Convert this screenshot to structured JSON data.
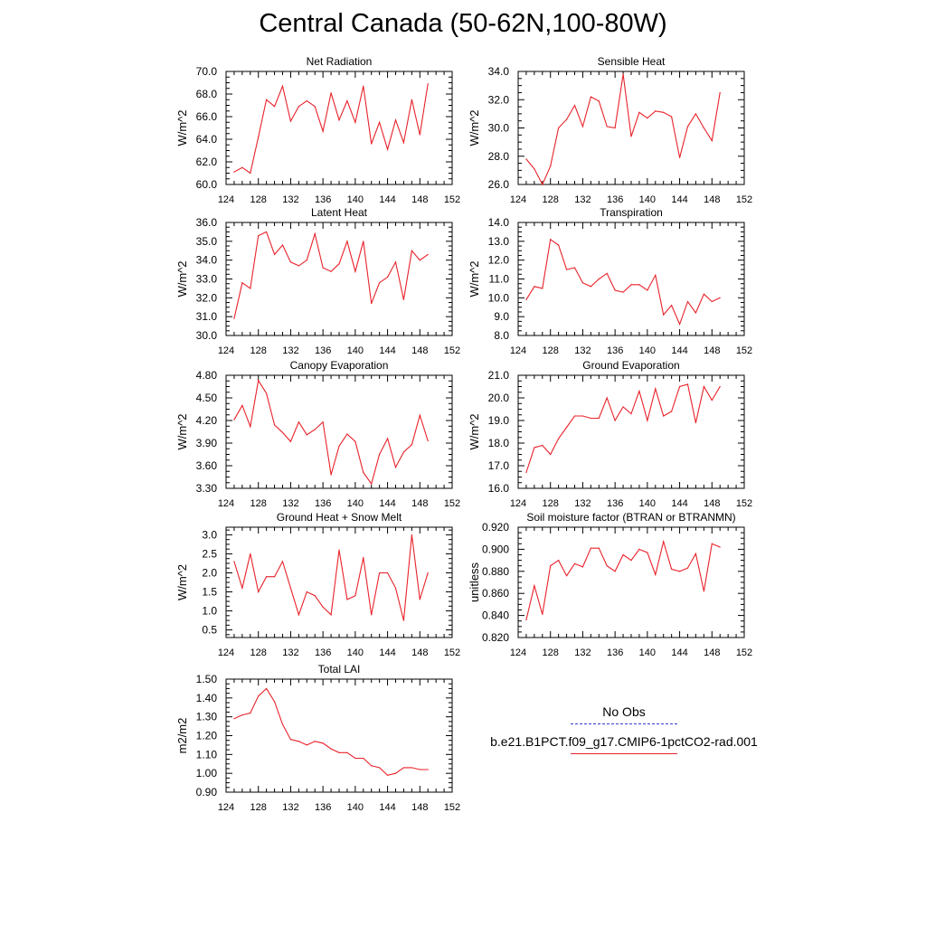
{
  "title": "Central Canada (50-62N,100-80W)",
  "legend": {
    "obs_label": "No Obs",
    "obs_color": "#3a3ad0",
    "model_label": "b.e21.B1PCT.f09_g17.CMIP6-1pctCO2-rad.001",
    "model_color": "#e8222a"
  },
  "chart_data": [
    {
      "type": "line",
      "title": "Net Radiation",
      "ylabel": "W/m^2",
      "xlim": [
        124,
        152
      ],
      "xticks": [
        "124",
        "128",
        "132",
        "136",
        "140",
        "144",
        "148",
        "152"
      ],
      "ylim": [
        60.0,
        70.0
      ],
      "yticks": [
        "60.0",
        "62.0",
        "64.0",
        "66.0",
        "68.0",
        "70.0"
      ],
      "x": [
        125,
        126,
        127,
        128,
        129,
        130,
        131,
        132,
        133,
        134,
        135,
        136,
        137,
        138,
        139,
        140,
        141,
        142,
        143,
        144,
        145,
        146,
        147,
        148,
        149
      ],
      "series": [
        {
          "name": "b.e21.B1PCT.f09_g17.CMIP6-1pctCO2-rad.001",
          "values": [
            61.1,
            61.5,
            61.0,
            64.2,
            67.5,
            66.9,
            68.7,
            65.6,
            66.9,
            67.4,
            66.9,
            64.7,
            68.1,
            65.7,
            67.4,
            65.5,
            68.7,
            63.6,
            65.5,
            63.1,
            65.7,
            63.7,
            67.5,
            64.4,
            68.9
          ]
        }
      ]
    },
    {
      "type": "line",
      "title": "Sensible Heat",
      "ylabel": "W/m^2",
      "xlim": [
        124,
        152
      ],
      "xticks": [
        "124",
        "128",
        "132",
        "136",
        "140",
        "144",
        "148",
        "152"
      ],
      "ylim": [
        26.0,
        34.0
      ],
      "yticks": [
        "26.0",
        "28.0",
        "30.0",
        "32.0",
        "34.0"
      ],
      "x": [
        125,
        126,
        127,
        128,
        129,
        130,
        131,
        132,
        133,
        134,
        135,
        136,
        137,
        138,
        139,
        140,
        141,
        142,
        143,
        144,
        145,
        146,
        147,
        148,
        149
      ],
      "series": [
        {
          "name": "b.e21.B1PCT.f09_g17.CMIP6-1pctCO2-rad.001",
          "values": [
            27.8,
            27.1,
            26.0,
            27.3,
            30.0,
            30.6,
            31.6,
            30.1,
            32.2,
            31.9,
            30.1,
            30.0,
            33.8,
            29.4,
            31.1,
            30.7,
            31.2,
            31.1,
            30.8,
            27.9,
            30.1,
            31.0,
            30.0,
            29.1,
            32.5
          ]
        }
      ]
    },
    {
      "type": "line",
      "title": "Latent Heat",
      "ylabel": "W/m^2",
      "xlim": [
        124,
        152
      ],
      "xticks": [
        "124",
        "128",
        "132",
        "136",
        "140",
        "144",
        "148",
        "152"
      ],
      "ylim": [
        30.0,
        36.0
      ],
      "yticks": [
        "30.0",
        "31.0",
        "32.0",
        "33.0",
        "34.0",
        "35.0",
        "36.0"
      ],
      "x": [
        125,
        126,
        127,
        128,
        129,
        130,
        131,
        132,
        133,
        134,
        135,
        136,
        137,
        138,
        139,
        140,
        141,
        142,
        143,
        144,
        145,
        146,
        147,
        148,
        149
      ],
      "series": [
        {
          "name": "b.e21.B1PCT.f09_g17.CMIP6-1pctCO2-rad.001",
          "values": [
            30.9,
            32.8,
            32.5,
            35.3,
            35.5,
            34.3,
            34.8,
            33.9,
            33.7,
            34.0,
            35.4,
            33.6,
            33.4,
            33.8,
            35.0,
            33.4,
            35.0,
            31.7,
            32.8,
            33.1,
            33.9,
            31.9,
            34.5,
            34.0,
            34.3
          ]
        }
      ]
    },
    {
      "type": "line",
      "title": "Transpiration",
      "ylabel": "W/m^2",
      "xlim": [
        124,
        152
      ],
      "xticks": [
        "124",
        "128",
        "132",
        "136",
        "140",
        "144",
        "148",
        "152"
      ],
      "ylim": [
        8.0,
        14.0
      ],
      "yticks": [
        "8.0",
        "9.0",
        "10.0",
        "11.0",
        "12.0",
        "13.0",
        "14.0"
      ],
      "x": [
        125,
        126,
        127,
        128,
        129,
        130,
        131,
        132,
        133,
        134,
        135,
        136,
        137,
        138,
        139,
        140,
        141,
        142,
        143,
        144,
        145,
        146,
        147,
        148,
        149
      ],
      "series": [
        {
          "name": "b.e21.B1PCT.f09_g17.CMIP6-1pctCO2-rad.001",
          "values": [
            9.9,
            10.6,
            10.5,
            13.1,
            12.8,
            11.5,
            11.6,
            10.8,
            10.6,
            11.0,
            11.3,
            10.4,
            10.3,
            10.7,
            10.7,
            10.4,
            11.2,
            9.1,
            9.6,
            8.6,
            9.8,
            9.2,
            10.2,
            9.8,
            10.0
          ]
        }
      ]
    },
    {
      "type": "line",
      "title": "Canopy Evaporation",
      "ylabel": "W/m^2",
      "xlim": [
        124,
        152
      ],
      "xticks": [
        "124",
        "128",
        "132",
        "136",
        "140",
        "144",
        "148",
        "152"
      ],
      "ylim": [
        3.3,
        4.8
      ],
      "yticks": [
        "3.30",
        "3.60",
        "3.90",
        "4.20",
        "4.50",
        "4.80"
      ],
      "x": [
        125,
        126,
        127,
        128,
        129,
        130,
        131,
        132,
        133,
        134,
        135,
        136,
        137,
        138,
        139,
        140,
        141,
        142,
        143,
        144,
        145,
        146,
        147,
        148,
        149
      ],
      "series": [
        {
          "name": "b.e21.B1PCT.f09_g17.CMIP6-1pctCO2-rad.001",
          "values": [
            4.21,
            4.4,
            4.12,
            4.73,
            4.56,
            4.14,
            4.04,
            3.92,
            4.18,
            4.01,
            4.08,
            4.18,
            3.48,
            3.86,
            4.02,
            3.92,
            3.51,
            3.36,
            3.75,
            3.96,
            3.58,
            3.78,
            3.88,
            4.27,
            3.93
          ]
        }
      ]
    },
    {
      "type": "line",
      "title": "Ground Evaporation",
      "ylabel": "W/m^2",
      "xlim": [
        124,
        152
      ],
      "xticks": [
        "124",
        "128",
        "132",
        "136",
        "140",
        "144",
        "148",
        "152"
      ],
      "ylim": [
        16.0,
        21.0
      ],
      "yticks": [
        "16.0",
        "17.0",
        "18.0",
        "19.0",
        "20.0",
        "21.0"
      ],
      "x": [
        125,
        126,
        127,
        128,
        129,
        130,
        131,
        132,
        133,
        134,
        135,
        136,
        137,
        138,
        139,
        140,
        141,
        142,
        143,
        144,
        145,
        146,
        147,
        148,
        149
      ],
      "series": [
        {
          "name": "b.e21.B1PCT.f09_g17.CMIP6-1pctCO2-rad.001",
          "values": [
            16.7,
            17.8,
            17.9,
            17.5,
            18.2,
            18.7,
            19.2,
            19.2,
            19.1,
            19.1,
            20.0,
            19.0,
            19.6,
            19.3,
            20.3,
            19.0,
            20.4,
            19.2,
            19.4,
            20.5,
            20.6,
            18.9,
            20.5,
            19.9,
            20.5
          ]
        }
      ]
    },
    {
      "type": "line",
      "title": "Ground Heat + Snow Melt",
      "ylabel": "W/m^2",
      "xlim": [
        124,
        152
      ],
      "xticks": [
        "124",
        "128",
        "132",
        "136",
        "140",
        "144",
        "148",
        "152"
      ],
      "ylim": [
        0.3,
        3.2
      ],
      "yticks": [
        "0.5",
        "1.0",
        "1.5",
        "2.0",
        "2.5",
        "3.0"
      ],
      "ytick_values": [
        0.5,
        1.0,
        1.5,
        2.0,
        2.5,
        3.0
      ],
      "x": [
        125,
        126,
        127,
        128,
        129,
        130,
        131,
        132,
        133,
        134,
        135,
        136,
        137,
        138,
        139,
        140,
        141,
        142,
        143,
        144,
        145,
        146,
        147,
        148,
        149
      ],
      "series": [
        {
          "name": "b.e21.B1PCT.f09_g17.CMIP6-1pctCO2-rad.001",
          "values": [
            2.3,
            1.6,
            2.5,
            1.5,
            1.9,
            1.9,
            2.3,
            1.6,
            0.9,
            1.5,
            1.4,
            1.1,
            0.9,
            2.6,
            1.3,
            1.4,
            2.4,
            0.9,
            2.0,
            2.0,
            1.6,
            0.75,
            3.0,
            1.3,
            2.0
          ]
        }
      ]
    },
    {
      "type": "line",
      "title": "Soil moisture factor (BTRAN or BTRANMN)",
      "ylabel": "unitless",
      "xlim": [
        124,
        152
      ],
      "xticks": [
        "124",
        "128",
        "132",
        "136",
        "140",
        "144",
        "148",
        "152"
      ],
      "ylim": [
        0.82,
        0.92
      ],
      "yticks": [
        "0.820",
        "0.840",
        "0.860",
        "0.880",
        "0.900",
        "0.920"
      ],
      "x": [
        125,
        126,
        127,
        128,
        129,
        130,
        131,
        132,
        133,
        134,
        135,
        136,
        137,
        138,
        139,
        140,
        141,
        142,
        143,
        144,
        145,
        146,
        147,
        148,
        149
      ],
      "series": [
        {
          "name": "b.e21.B1PCT.f09_g17.CMIP6-1pctCO2-rad.001",
          "values": [
            0.836,
            0.867,
            0.841,
            0.885,
            0.89,
            0.876,
            0.887,
            0.884,
            0.901,
            0.901,
            0.885,
            0.88,
            0.895,
            0.89,
            0.9,
            0.897,
            0.877,
            0.907,
            0.882,
            0.88,
            0.883,
            0.896,
            0.862,
            0.905,
            0.902
          ]
        }
      ]
    },
    {
      "type": "line",
      "title": "Total LAI",
      "ylabel": "m2/m2",
      "xlim": [
        124,
        152
      ],
      "xticks": [
        "124",
        "128",
        "132",
        "136",
        "140",
        "144",
        "148",
        "152"
      ],
      "ylim": [
        0.9,
        1.5
      ],
      "yticks": [
        "0.90",
        "1.00",
        "1.10",
        "1.20",
        "1.30",
        "1.40",
        "1.50"
      ],
      "x": [
        125,
        126,
        127,
        128,
        129,
        130,
        131,
        132,
        133,
        134,
        135,
        136,
        137,
        138,
        139,
        140,
        141,
        142,
        143,
        144,
        145,
        146,
        147,
        148,
        149
      ],
      "series": [
        {
          "name": "b.e21.B1PCT.f09_g17.CMIP6-1pctCO2-rad.001",
          "values": [
            1.29,
            1.31,
            1.32,
            1.41,
            1.45,
            1.38,
            1.26,
            1.18,
            1.17,
            1.15,
            1.17,
            1.16,
            1.13,
            1.11,
            1.11,
            1.08,
            1.08,
            1.04,
            1.03,
            0.99,
            1.0,
            1.03,
            1.03,
            1.02,
            1.02
          ]
        }
      ]
    }
  ]
}
